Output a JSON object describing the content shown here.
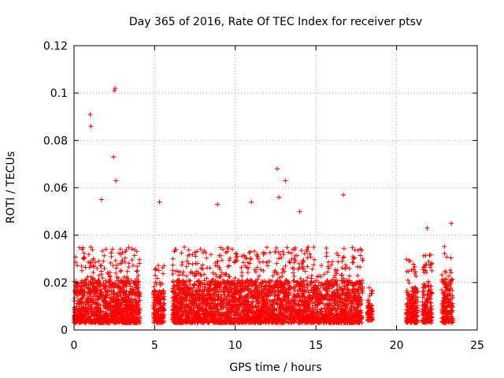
{
  "chart_data": {
    "type": "scatter",
    "title": "Day 365 of 2016, Rate Of TEC Index for receiver ptsv",
    "xlabel": "GPS time / hours",
    "ylabel": "ROTI / TECUs",
    "xlim": [
      0,
      25
    ],
    "ylim": [
      0,
      0.12
    ],
    "xticks": [
      0,
      5,
      10,
      15,
      20,
      25
    ],
    "xtick_labels": [
      "0",
      "5",
      "10",
      "15",
      "20",
      "25"
    ],
    "yticks": [
      0,
      0.02,
      0.04,
      0.06,
      0.08,
      0.1,
      0.12
    ],
    "ytick_labels": [
      "0",
      "0.02",
      "0.04",
      "0.06",
      "0.08",
      "0.1",
      "0.12"
    ],
    "grid": true,
    "marker": "+",
    "color": "#ff0000",
    "data_segments": [
      {
        "x_start": 0.0,
        "x_end": 4.1,
        "y_low": 0.003,
        "y_high": 0.035
      },
      {
        "x_start": 4.9,
        "x_end": 5.6,
        "y_low": 0.003,
        "y_high": 0.028
      },
      {
        "x_start": 6.1,
        "x_end": 17.9,
        "y_low": 0.003,
        "y_high": 0.035
      },
      {
        "x_start": 18.2,
        "x_end": 18.5,
        "y_low": 0.004,
        "y_high": 0.018
      },
      {
        "x_start": 20.6,
        "x_end": 21.3,
        "y_low": 0.003,
        "y_high": 0.03
      },
      {
        "x_start": 21.6,
        "x_end": 22.2,
        "y_low": 0.003,
        "y_high": 0.032
      },
      {
        "x_start": 22.8,
        "x_end": 23.5,
        "y_low": 0.003,
        "y_high": 0.036
      }
    ],
    "notable_points": [
      {
        "x": 1.0,
        "y": 0.091
      },
      {
        "x": 1.05,
        "y": 0.086
      },
      {
        "x": 2.45,
        "y": 0.073
      },
      {
        "x": 2.5,
        "y": 0.101
      },
      {
        "x": 2.55,
        "y": 0.102
      },
      {
        "x": 2.6,
        "y": 0.063
      },
      {
        "x": 1.7,
        "y": 0.055
      },
      {
        "x": 5.3,
        "y": 0.054
      },
      {
        "x": 12.6,
        "y": 0.068
      },
      {
        "x": 13.1,
        "y": 0.063
      },
      {
        "x": 16.7,
        "y": 0.057
      },
      {
        "x": 11.0,
        "y": 0.054
      },
      {
        "x": 8.9,
        "y": 0.053
      },
      {
        "x": 12.7,
        "y": 0.056
      },
      {
        "x": 14.0,
        "y": 0.05
      },
      {
        "x": 21.9,
        "y": 0.043
      },
      {
        "x": 23.4,
        "y": 0.045
      }
    ]
  }
}
